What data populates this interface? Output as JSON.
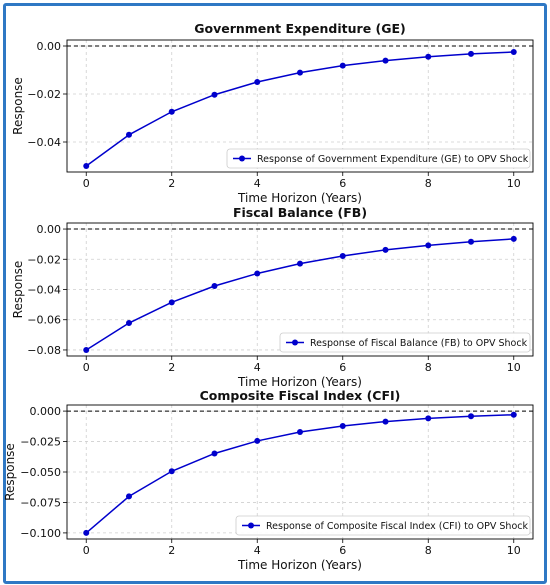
{
  "chart_data": [
    {
      "type": "line",
      "title": "Government Expenditure (GE)",
      "xlabel": "Time Horizon (Years)",
      "ylabel": "Response",
      "x": [
        0,
        1,
        2,
        3,
        4,
        5,
        6,
        7,
        8,
        9,
        10
      ],
      "series": [
        {
          "name": "Response of Government Expenditure (GE) to OPV Shock",
          "values": [
            -0.05,
            -0.037,
            -0.0274,
            -0.0203,
            -0.015,
            -0.0111,
            -0.0082,
            -0.0061,
            -0.0045,
            -0.0033,
            -0.0025
          ]
        }
      ],
      "xlim": [
        -0.45,
        10.45
      ],
      "ylim": [
        -0.0525,
        0.0025
      ],
      "xticks": [
        "0",
        "2",
        "4",
        "6",
        "8",
        "10"
      ],
      "yticks": [
        {
          "value": 0.0,
          "label": "0.00"
        },
        {
          "value": -0.02,
          "label": "−0.02"
        },
        {
          "value": -0.04,
          "label": "−0.04"
        }
      ],
      "zero_line": true,
      "grid": true,
      "legend": "lower-right",
      "color": "#0000cc"
    },
    {
      "type": "line",
      "title": "Fiscal Balance (FB)",
      "xlabel": "Time Horizon (Years)",
      "ylabel": "Response",
      "x": [
        0,
        1,
        2,
        3,
        4,
        5,
        6,
        7,
        8,
        9,
        10
      ],
      "series": [
        {
          "name": "Response of Fiscal Balance (FB) to OPV Shock",
          "values": [
            -0.08,
            -0.0622,
            -0.0485,
            -0.0377,
            -0.0294,
            -0.0229,
            -0.0178,
            -0.0138,
            -0.0108,
            -0.0084,
            -0.0065
          ]
        }
      ],
      "xlim": [
        -0.45,
        10.45
      ],
      "ylim": [
        -0.084,
        0.004
      ],
      "xticks": [
        "0",
        "2",
        "4",
        "6",
        "8",
        "10"
      ],
      "yticks": [
        {
          "value": 0.0,
          "label": "0.00"
        },
        {
          "value": -0.02,
          "label": "−0.02"
        },
        {
          "value": -0.04,
          "label": "−0.04"
        },
        {
          "value": -0.06,
          "label": "−0.06"
        },
        {
          "value": -0.08,
          "label": "−0.08"
        }
      ],
      "zero_line": true,
      "grid": true,
      "legend": "lower-right",
      "color": "#0000cc"
    },
    {
      "type": "line",
      "title": "Composite Fiscal Index (CFI)",
      "xlabel": "Time Horizon (Years)",
      "ylabel": "Response",
      "x": [
        0,
        1,
        2,
        3,
        4,
        5,
        6,
        7,
        8,
        9,
        10
      ],
      "series": [
        {
          "name": "Response of Composite Fiscal Index (CFI) to OPV Shock",
          "values": [
            -0.1,
            -0.07,
            -0.0494,
            -0.0348,
            -0.0245,
            -0.0172,
            -0.0122,
            -0.0086,
            -0.006,
            -0.0042,
            -0.003
          ]
        }
      ],
      "xlim": [
        -0.45,
        10.45
      ],
      "ylim": [
        -0.105,
        0.005
      ],
      "xticks": [
        "0",
        "2",
        "4",
        "6",
        "8",
        "10"
      ],
      "yticks": [
        {
          "value": 0.0,
          "label": "0.000"
        },
        {
          "value": -0.025,
          "label": "−0.025"
        },
        {
          "value": -0.05,
          "label": "−0.050"
        },
        {
          "value": -0.075,
          "label": "−0.075"
        },
        {
          "value": -0.1,
          "label": "−0.100"
        }
      ],
      "zero_line": true,
      "grid": true,
      "legend": "lower-right",
      "color": "#0000cc"
    }
  ]
}
